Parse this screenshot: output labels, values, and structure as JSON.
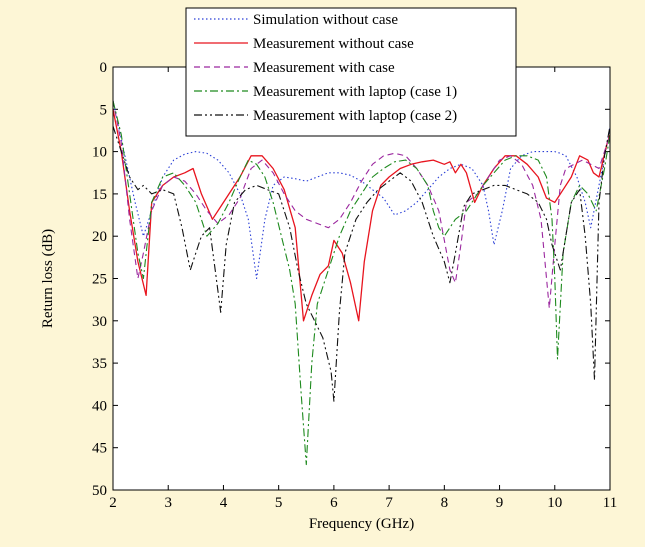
{
  "chart_data": {
    "type": "line",
    "title": "",
    "xlabel": "Frequency (GHz)",
    "ylabel": "Return loss (dB)",
    "xlim": [
      2,
      11
    ],
    "ylim": [
      0,
      50
    ],
    "y_inverted": true,
    "xticks": [
      2,
      3,
      4,
      5,
      6,
      7,
      8,
      9,
      10,
      11
    ],
    "yticks": [
      0,
      5,
      10,
      15,
      20,
      25,
      30,
      35,
      40,
      45,
      50
    ],
    "xtick_labels": [
      "2",
      "3",
      "4",
      "5",
      "6",
      "7",
      "8",
      "9",
      "10",
      "11"
    ],
    "ytick_labels": [
      "0",
      "5",
      "10",
      "15",
      "20",
      "25",
      "30",
      "35",
      "40",
      "45",
      "50"
    ],
    "grid": false,
    "legend_position": "top-center",
    "background_color": "#fdf6d6",
    "series": [
      {
        "name": "Simulation without case",
        "color": "#2a3fd6",
        "dash": "dotted",
        "x": [
          2.0,
          2.2,
          2.4,
          2.55,
          2.7,
          2.9,
          3.1,
          3.3,
          3.5,
          3.7,
          3.9,
          4.1,
          4.3,
          4.45,
          4.6,
          4.75,
          4.9,
          5.1,
          5.3,
          5.5,
          5.7,
          5.9,
          6.1,
          6.3,
          6.5,
          6.7,
          6.9,
          7.1,
          7.3,
          7.5,
          7.7,
          7.9,
          8.1,
          8.3,
          8.5,
          8.7,
          8.8,
          8.9,
          9.05,
          9.2,
          9.4,
          9.6,
          9.8,
          10.0,
          10.1,
          10.2,
          10.4,
          10.55,
          10.65,
          10.8,
          10.95,
          11.0
        ],
        "y": [
          4.0,
          10.0,
          16.0,
          20.0,
          17.0,
          13.0,
          11.0,
          10.3,
          10.0,
          10.2,
          11.0,
          12.5,
          15.0,
          18.0,
          25.0,
          18.0,
          14.0,
          13.0,
          13.2,
          13.5,
          13.0,
          12.5,
          12.5,
          12.8,
          13.5,
          14.5,
          15.5,
          17.5,
          17.0,
          16.0,
          14.5,
          13.0,
          12.0,
          11.5,
          12.0,
          14.0,
          17.0,
          21.0,
          17.0,
          12.0,
          10.5,
          10.0,
          10.0,
          10.0,
          10.2,
          10.5,
          13.0,
          16.0,
          19.0,
          14.0,
          9.0,
          7.0
        ]
      },
      {
        "name": "Measurement without case",
        "color": "#e8141e",
        "dash": "solid",
        "x": [
          2.0,
          2.15,
          2.3,
          2.45,
          2.6,
          2.7,
          2.9,
          3.1,
          3.3,
          3.45,
          3.6,
          3.8,
          3.95,
          4.1,
          4.3,
          4.5,
          4.7,
          4.9,
          5.1,
          5.3,
          5.45,
          5.6,
          5.75,
          5.9,
          6.0,
          6.15,
          6.3,
          6.45,
          6.55,
          6.7,
          6.85,
          7.0,
          7.2,
          7.4,
          7.6,
          7.8,
          8.0,
          8.1,
          8.2,
          8.3,
          8.4,
          8.55,
          8.7,
          8.9,
          9.1,
          9.3,
          9.5,
          9.7,
          9.85,
          10.0,
          10.15,
          10.3,
          10.45,
          10.6,
          10.7,
          10.8,
          10.95,
          11.0
        ],
        "y": [
          5.0,
          10.0,
          17.0,
          23.0,
          27.0,
          16.0,
          14.0,
          13.0,
          12.5,
          12.0,
          15.0,
          18.0,
          16.5,
          15.0,
          13.0,
          10.5,
          10.5,
          12.0,
          14.5,
          19.0,
          30.0,
          27.0,
          24.5,
          23.5,
          20.5,
          22.0,
          25.5,
          30.0,
          23.0,
          17.0,
          14.0,
          13.0,
          12.0,
          11.5,
          11.2,
          11.0,
          11.5,
          11.2,
          12.5,
          11.5,
          12.5,
          16.0,
          14.0,
          12.0,
          10.5,
          10.5,
          11.5,
          13.0,
          15.5,
          16.0,
          14.5,
          13.0,
          10.5,
          11.0,
          12.5,
          13.0,
          9.0,
          8.0
        ]
      },
      {
        "name": "Measurement with case",
        "color": "#9b289f",
        "dash": "dashed",
        "x": [
          2.0,
          2.15,
          2.3,
          2.45,
          2.55,
          2.7,
          2.9,
          3.1,
          3.3,
          3.5,
          3.7,
          3.9,
          4.1,
          4.3,
          4.5,
          4.7,
          4.9,
          5.1,
          5.3,
          5.5,
          5.7,
          5.9,
          6.1,
          6.3,
          6.5,
          6.7,
          6.9,
          7.1,
          7.3,
          7.5,
          7.7,
          7.9,
          8.1,
          8.2,
          8.3,
          8.4,
          8.6,
          8.8,
          9.0,
          9.2,
          9.4,
          9.6,
          9.75,
          9.9,
          10.0,
          10.1,
          10.2,
          10.35,
          10.5,
          10.65,
          10.8,
          10.95,
          11.0
        ],
        "y": [
          4.0,
          9.0,
          18.0,
          25.0,
          22.0,
          17.0,
          14.0,
          13.0,
          13.5,
          15.0,
          17.0,
          18.5,
          17.5,
          15.5,
          12.0,
          11.0,
          12.5,
          15.0,
          17.0,
          18.0,
          18.5,
          19.0,
          18.0,
          16.0,
          13.5,
          11.5,
          10.5,
          10.2,
          10.5,
          12.0,
          14.0,
          17.0,
          24.0,
          25.5,
          21.0,
          16.0,
          15.0,
          13.0,
          11.0,
          10.5,
          11.5,
          14.0,
          18.0,
          28.5,
          21.0,
          14.0,
          12.0,
          11.5,
          11.0,
          11.5,
          12.0,
          9.0,
          8.0
        ]
      },
      {
        "name": "Measurement with laptop (case 1)",
        "color": "#1e8a1e",
        "dash": "dashdot",
        "x": [
          2.0,
          2.15,
          2.3,
          2.45,
          2.55,
          2.7,
          2.9,
          3.1,
          3.3,
          3.5,
          3.7,
          3.9,
          4.1,
          4.3,
          4.45,
          4.6,
          4.75,
          4.9,
          5.05,
          5.2,
          5.3,
          5.4,
          5.5,
          5.6,
          5.7,
          5.8,
          5.95,
          6.1,
          6.3,
          6.5,
          6.7,
          6.9,
          7.1,
          7.3,
          7.5,
          7.7,
          7.8,
          7.9,
          8.0,
          8.2,
          8.4,
          8.55,
          8.7,
          8.9,
          9.1,
          9.3,
          9.5,
          9.7,
          9.85,
          9.95,
          10.0,
          10.05,
          10.15,
          10.3,
          10.45,
          10.6,
          10.75,
          10.9,
          11.0
        ],
        "y": [
          4.0,
          8.0,
          15.0,
          22.0,
          25.0,
          16.0,
          13.0,
          12.5,
          14.0,
          16.0,
          20.0,
          18.5,
          16.0,
          13.0,
          11.0,
          11.5,
          13.0,
          16.0,
          20.0,
          24.0,
          28.0,
          38.0,
          47.0,
          35.0,
          28.0,
          26.0,
          23.0,
          20.0,
          17.0,
          15.0,
          13.0,
          12.0,
          11.2,
          11.0,
          12.0,
          14.0,
          17.0,
          19.0,
          20.0,
          18.0,
          17.0,
          15.5,
          14.0,
          12.5,
          11.0,
          10.5,
          10.5,
          11.0,
          13.0,
          18.0,
          25.0,
          34.5,
          22.0,
          16.0,
          14.0,
          15.0,
          17.0,
          12.0,
          8.0
        ]
      },
      {
        "name": "Measurement with laptop (case 2)",
        "color": "#111111",
        "dash": "dashdotdot",
        "x": [
          2.0,
          2.15,
          2.3,
          2.45,
          2.55,
          2.7,
          2.9,
          3.1,
          3.25,
          3.4,
          3.5,
          3.6,
          3.75,
          3.85,
          3.95,
          4.05,
          4.2,
          4.4,
          4.6,
          4.8,
          5.0,
          5.2,
          5.35,
          5.5,
          5.65,
          5.8,
          5.95,
          6.0,
          6.1,
          6.2,
          6.4,
          6.6,
          6.8,
          7.0,
          7.2,
          7.4,
          7.6,
          7.8,
          8.0,
          8.1,
          8.2,
          8.35,
          8.5,
          8.7,
          8.9,
          9.1,
          9.3,
          9.5,
          9.7,
          9.85,
          9.95,
          10.1,
          10.3,
          10.45,
          10.55,
          10.65,
          10.72,
          10.8,
          10.9,
          11.0
        ],
        "y": [
          7.0,
          10.0,
          13.0,
          14.5,
          14.0,
          15.0,
          14.5,
          15.0,
          19.0,
          24.0,
          22.0,
          20.0,
          19.0,
          24.0,
          29.0,
          21.0,
          16.0,
          14.5,
          14.0,
          14.5,
          15.0,
          19.0,
          24.0,
          28.0,
          30.0,
          32.0,
          36.0,
          39.5,
          29.0,
          22.0,
          18.0,
          16.0,
          14.5,
          13.5,
          12.5,
          13.5,
          16.0,
          20.0,
          23.0,
          25.5,
          22.0,
          16.5,
          15.0,
          14.5,
          14.0,
          14.0,
          14.5,
          15.0,
          16.0,
          18.0,
          21.0,
          24.0,
          16.0,
          14.5,
          20.0,
          28.0,
          37.0,
          16.0,
          10.5,
          7.0
        ]
      }
    ]
  }
}
